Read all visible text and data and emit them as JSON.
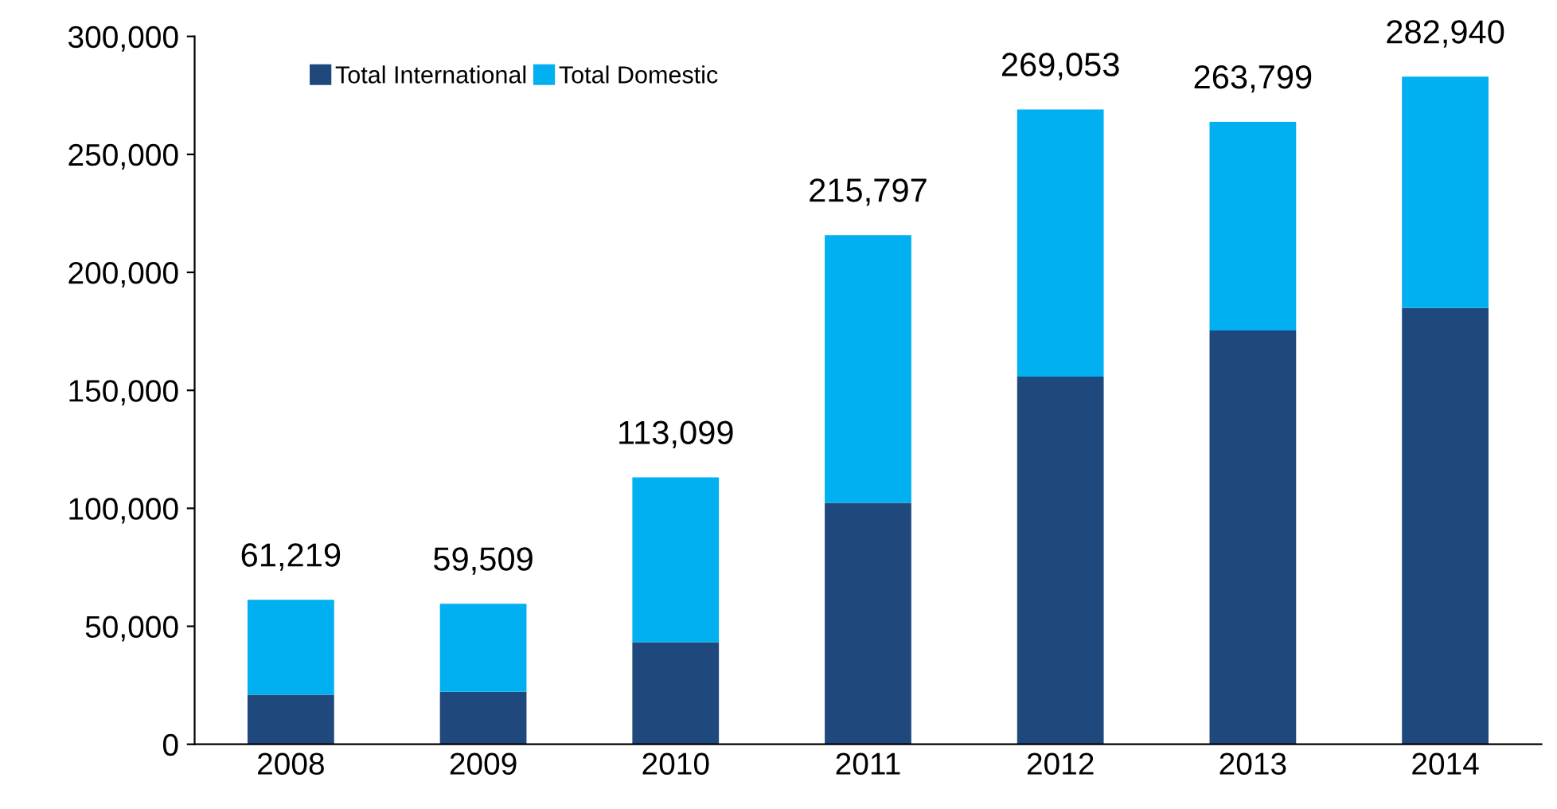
{
  "chart_data": {
    "type": "bar",
    "stacked": true,
    "categories": [
      "2008",
      "2009",
      "2010",
      "2011",
      "2012",
      "2013",
      "2014"
    ],
    "series": [
      {
        "name": "Total International",
        "color": "#1f497d",
        "values": [
          21000,
          22300,
          43300,
          102300,
          155800,
          175400,
          184900
        ]
      },
      {
        "name": "Total Domestic",
        "color": "#00b0f0",
        "values": [
          40219,
          37209,
          69799,
          113497,
          113253,
          88399,
          98040
        ]
      }
    ],
    "totals": [
      "61,219",
      "59,509",
      "113,099",
      "215,797",
      "269,053",
      "263,799",
      "282,940"
    ],
    "ylim": [
      0,
      300000
    ],
    "yticks": [
      {
        "value": 0,
        "label": "0"
      },
      {
        "value": 50000,
        "label": "50,000"
      },
      {
        "value": 100000,
        "label": "100,000"
      },
      {
        "value": 150000,
        "label": "150,000"
      },
      {
        "value": 200000,
        "label": "200,000"
      },
      {
        "value": 250000,
        "label": "250,000"
      },
      {
        "value": 300000,
        "label": "300,000"
      }
    ],
    "grid": false,
    "legend": "top left"
  }
}
